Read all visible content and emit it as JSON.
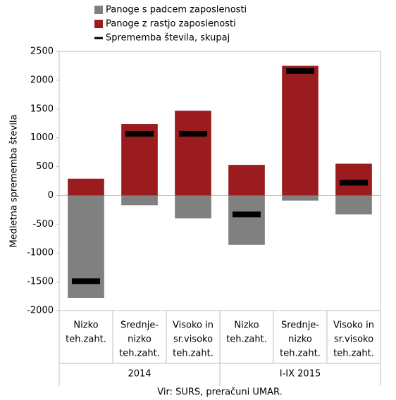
{
  "chart_data": {
    "type": "bar",
    "categories": [
      [
        "Nizko",
        "teh.zaht."
      ],
      [
        "Srednje-",
        "nizko",
        "teh.zaht."
      ],
      [
        "Visoko in",
        "sr.visoko",
        "teh.zaht."
      ],
      [
        "Nizko",
        "teh.zaht."
      ],
      [
        "Srednje-",
        "nizko",
        "teh.zaht."
      ],
      [
        "Visoko in",
        "sr.visoko",
        "teh.zaht."
      ]
    ],
    "group_labels": [
      "2014",
      "I-IX 2015"
    ],
    "series": [
      {
        "name": "Panoge s padcem zaposlenosti",
        "color": "#808080",
        "values": [
          -1780,
          -170,
          -400,
          -860,
          -90,
          -330
        ]
      },
      {
        "name": "Panoge z rastjo zaposlenosti",
        "color": "#9b1c1f",
        "values": [
          290,
          1240,
          1470,
          530,
          2250,
          550
        ]
      },
      {
        "name": "Sprememba števila, skupaj",
        "color": "#000000",
        "values": [
          -1490,
          1070,
          1070,
          -330,
          2160,
          220
        ]
      }
    ],
    "y_label": "Medletna  sprememba števila",
    "ylim": [
      -2000,
      2500
    ],
    "yticks": [
      -2000,
      -1500,
      -1000,
      -500,
      0,
      500,
      1000,
      1500,
      2000,
      2500
    ],
    "grid": false,
    "source": "Vir: SURS, preračuni UMAR."
  }
}
